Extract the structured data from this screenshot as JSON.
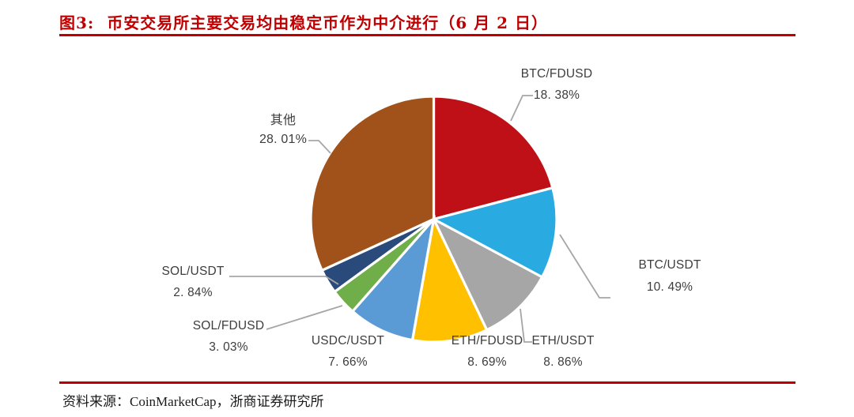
{
  "figure": {
    "label": "图3:",
    "title": "币安交易所主要交易均由稳定币作为中介进行（6 月 2 日）",
    "accent_color": "#c00000"
  },
  "source": {
    "label": "资料来源：",
    "text": "CoinMarketCap，浙商证券研究所"
  },
  "chart_data": {
    "type": "pie",
    "title": "币安交易所主要交易均由稳定币作为中介进行（6 月 2 日）",
    "start_angle_deg": 0,
    "direction": "clockwise",
    "note": "displayed percentages sum to 87.96; slice angles are normalized to the total",
    "leader_line_color": "#a6a6a6",
    "slices": [
      {
        "name": "BTC/FDUSD",
        "value": 18.38,
        "display": "18. 38%",
        "color": "#be1016"
      },
      {
        "name": "BTC/USDT",
        "value": 10.49,
        "display": "10. 49%",
        "color": "#29abe2"
      },
      {
        "name": "ETH/USDT",
        "value": 8.86,
        "display": "8. 86%",
        "color": "#a6a6a6"
      },
      {
        "name": "ETH/FDUSD",
        "value": 8.69,
        "display": "8. 69%",
        "color": "#ffc000"
      },
      {
        "name": "USDC/USDT",
        "value": 7.66,
        "display": "7. 66%",
        "color": "#5b9bd5"
      },
      {
        "name": "SOL/FDUSD",
        "value": 3.03,
        "display": "3. 03%",
        "color": "#6fae49"
      },
      {
        "name": "SOL/USDT",
        "value": 2.84,
        "display": "2. 84%",
        "color": "#2a4a7c"
      },
      {
        "name": "其他",
        "value": 28.01,
        "display": "28. 01%",
        "color": "#a0521a"
      }
    ]
  }
}
